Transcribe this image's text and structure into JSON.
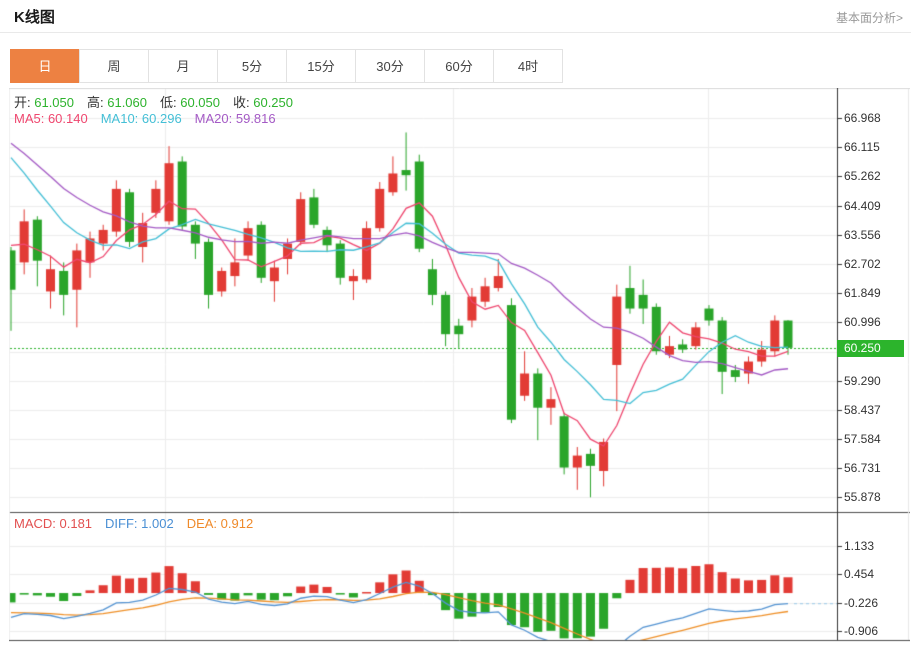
{
  "header": {
    "title": "K线图",
    "analysis_link": "基本面分析>"
  },
  "tabs": [
    {
      "label": "日",
      "selected": true
    },
    {
      "label": "周",
      "selected": false
    },
    {
      "label": "月",
      "selected": false
    },
    {
      "label": "5分",
      "selected": false
    },
    {
      "label": "15分",
      "selected": false
    },
    {
      "label": "30分",
      "selected": false
    },
    {
      "label": "60分",
      "selected": false
    },
    {
      "label": "4时",
      "selected": false
    }
  ],
  "ohlc_legend": {
    "items": [
      {
        "label": "开:",
        "value": "61.050"
      },
      {
        "label": "高:",
        "value": "61.060"
      },
      {
        "label": "低:",
        "value": "60.050"
      },
      {
        "label": "收:",
        "value": "60.250"
      }
    ],
    "value_color": "#2db32d"
  },
  "ma_legend": [
    {
      "label": "MA5:",
      "value": "60.140",
      "color": "#ef476f"
    },
    {
      "label": "MA10:",
      "value": "60.296",
      "color": "#44bfd6"
    },
    {
      "label": "MA20:",
      "value": "59.816",
      "color": "#a45ac5"
    }
  ],
  "macd_legend": [
    {
      "label": "MACD:",
      "value": "0.181",
      "color": "#e25050"
    },
    {
      "label": "DIFF:",
      "value": "1.002",
      "color": "#4a8fd4"
    },
    {
      "label": "DEA:",
      "value": "0.912",
      "color": "#ef8a2a"
    }
  ],
  "price_marker": {
    "value": "60.250",
    "bg": "#2cb42c"
  },
  "chart_data": {
    "type": "candlestick",
    "title": "K线图 daily candlesticks with MA5/MA10/MA20 and MACD",
    "legend_position": "top-left",
    "grid": true,
    "price_range": [
      55.45,
      67.85
    ],
    "macd_range": [
      -1.12,
      1.91
    ],
    "current_price": 60.25,
    "price_axis_ticks": [
      {
        "v": 66.968,
        "label": "66.968"
      },
      {
        "v": 66.115,
        "label": "66.115"
      },
      {
        "v": 65.262,
        "label": "65.262"
      },
      {
        "v": 64.409,
        "label": "64.409"
      },
      {
        "v": 63.556,
        "label": "63.556"
      },
      {
        "v": 62.702,
        "label": "62.702"
      },
      {
        "v": 61.849,
        "label": "61.849"
      },
      {
        "v": 60.996,
        "label": "60.996"
      },
      {
        "v": 60.143,
        "label": ""
      },
      {
        "v": 59.29,
        "label": "59.290"
      },
      {
        "v": 58.437,
        "label": "58.437"
      },
      {
        "v": 57.584,
        "label": "57.584"
      },
      {
        "v": 56.731,
        "label": "56.731"
      },
      {
        "v": 55.878,
        "label": "55.878"
      }
    ],
    "macd_axis_ticks": [
      {
        "v": 1.133,
        "label": "1.133"
      },
      {
        "v": 0.454,
        "label": "0.454"
      },
      {
        "v": -0.226,
        "label": "-0.226"
      },
      {
        "v": -0.906,
        "label": "-0.906"
      }
    ],
    "candles": [
      [
        63.1,
        63.2,
        60.75,
        61.95
      ],
      [
        62.75,
        64.3,
        62.4,
        63.95
      ],
      [
        64.0,
        64.1,
        62.05,
        62.8
      ],
      [
        61.9,
        62.95,
        61.4,
        62.55
      ],
      [
        62.5,
        62.75,
        61.2,
        61.8
      ],
      [
        61.95,
        63.3,
        60.85,
        63.1
      ],
      [
        62.75,
        63.65,
        62.3,
        63.45
      ],
      [
        63.3,
        63.85,
        63.1,
        63.7
      ],
      [
        63.65,
        65.15,
        63.5,
        64.9
      ],
      [
        64.8,
        64.9,
        63.2,
        63.35
      ],
      [
        63.2,
        64.2,
        62.75,
        63.9
      ],
      [
        64.2,
        65.15,
        64.05,
        64.9
      ],
      [
        63.95,
        66.15,
        63.85,
        65.65
      ],
      [
        65.7,
        65.85,
        63.7,
        63.8
      ],
      [
        63.85,
        63.95,
        62.85,
        63.3
      ],
      [
        63.35,
        63.45,
        61.4,
        61.8
      ],
      [
        61.9,
        62.6,
        61.75,
        62.5
      ],
      [
        62.35,
        63.45,
        62.05,
        62.75
      ],
      [
        62.95,
        63.95,
        62.8,
        63.75
      ],
      [
        63.85,
        63.95,
        62.15,
        62.3
      ],
      [
        62.2,
        62.8,
        61.6,
        62.6
      ],
      [
        62.85,
        63.45,
        62.4,
        63.3
      ],
      [
        63.35,
        64.8,
        63.25,
        64.6
      ],
      [
        64.65,
        64.9,
        63.75,
        63.85
      ],
      [
        63.7,
        63.8,
        63.05,
        63.25
      ],
      [
        63.3,
        63.4,
        62.1,
        62.3
      ],
      [
        62.2,
        62.55,
        61.65,
        62.35
      ],
      [
        62.25,
        63.95,
        62.15,
        63.75
      ],
      [
        63.75,
        65.1,
        63.65,
        64.9
      ],
      [
        64.8,
        65.85,
        64.7,
        65.35
      ],
      [
        65.45,
        66.55,
        64.85,
        65.3
      ],
      [
        65.7,
        65.9,
        63.05,
        63.15
      ],
      [
        62.55,
        62.85,
        61.5,
        61.8
      ],
      [
        61.8,
        61.9,
        60.3,
        60.65
      ],
      [
        60.9,
        61.1,
        60.25,
        60.65
      ],
      [
        61.05,
        62.0,
        60.85,
        61.75
      ],
      [
        61.6,
        62.3,
        61.45,
        62.05
      ],
      [
        62.0,
        62.85,
        61.9,
        62.35
      ],
      [
        61.5,
        61.7,
        58.05,
        58.15
      ],
      [
        58.85,
        60.15,
        58.7,
        59.5
      ],
      [
        59.5,
        59.65,
        57.55,
        58.5
      ],
      [
        58.5,
        59.1,
        58.0,
        58.75
      ],
      [
        58.25,
        58.35,
        56.55,
        56.75
      ],
      [
        56.75,
        57.35,
        56.1,
        57.1
      ],
      [
        57.15,
        57.3,
        55.88,
        56.8
      ],
      [
        56.65,
        57.6,
        56.2,
        57.5
      ],
      [
        59.75,
        62.1,
        58.4,
        61.75
      ],
      [
        62.0,
        62.65,
        61.25,
        61.4
      ],
      [
        61.8,
        62.25,
        60.95,
        61.4
      ],
      [
        61.45,
        61.55,
        60.05,
        60.15
      ],
      [
        60.05,
        60.6,
        59.95,
        60.3
      ],
      [
        60.35,
        60.5,
        60.1,
        60.2
      ],
      [
        60.3,
        61.0,
        60.2,
        60.85
      ],
      [
        61.4,
        61.5,
        60.9,
        61.05
      ],
      [
        61.05,
        61.15,
        58.9,
        59.55
      ],
      [
        59.6,
        59.75,
        59.25,
        59.4
      ],
      [
        59.5,
        60.0,
        59.2,
        59.85
      ],
      [
        59.85,
        60.45,
        59.7,
        60.2
      ],
      [
        60.15,
        61.2,
        60.0,
        61.05
      ],
      [
        61.05,
        61.06,
        60.05,
        60.25
      ]
    ],
    "ma_seeds": {
      "ma5": [
        63.8,
        63.6,
        63.5,
        63.4
      ],
      "ma10": [
        68.5,
        67.8,
        67.2,
        66.6,
        66.1,
        65.6,
        65.2,
        64.8,
        64.4
      ],
      "ma20": [
        70.0,
        69.6,
        69.2,
        68.8,
        68.4,
        68.0,
        67.6,
        67.2,
        66.8,
        66.4,
        66.0,
        65.6,
        65.2,
        64.8,
        64.4,
        64.0,
        63.8,
        63.6,
        63.4
      ]
    },
    "macd_seed": [
      65.5,
      65.4,
      65.3,
      65.2,
      65.1,
      65.0,
      64.9,
      64.8,
      64.7,
      64.6,
      64.5,
      64.4,
      64.3,
      64.2,
      64.1,
      64.0,
      63.9,
      63.8,
      63.7,
      63.6,
      63.5,
      63.45,
      63.4,
      63.35,
      63.3,
      63.25
    ],
    "grid_vertical_positions": [
      11.7,
      33.6,
      52.9
    ],
    "colors": {
      "up": "#e23b35",
      "down": "#2aa52a",
      "ma5": "#ef476f",
      "ma10": "#44bfd6",
      "ma20": "#a45ac5",
      "diff": "#5393d2",
      "dea": "#ef8f26",
      "grid": "#ededed",
      "axis": "#333333",
      "divider": "#4d4d4d",
      "border_top": "#dcdcdc",
      "price_line": "#2db32d",
      "projection": "#a9cfe9"
    }
  }
}
